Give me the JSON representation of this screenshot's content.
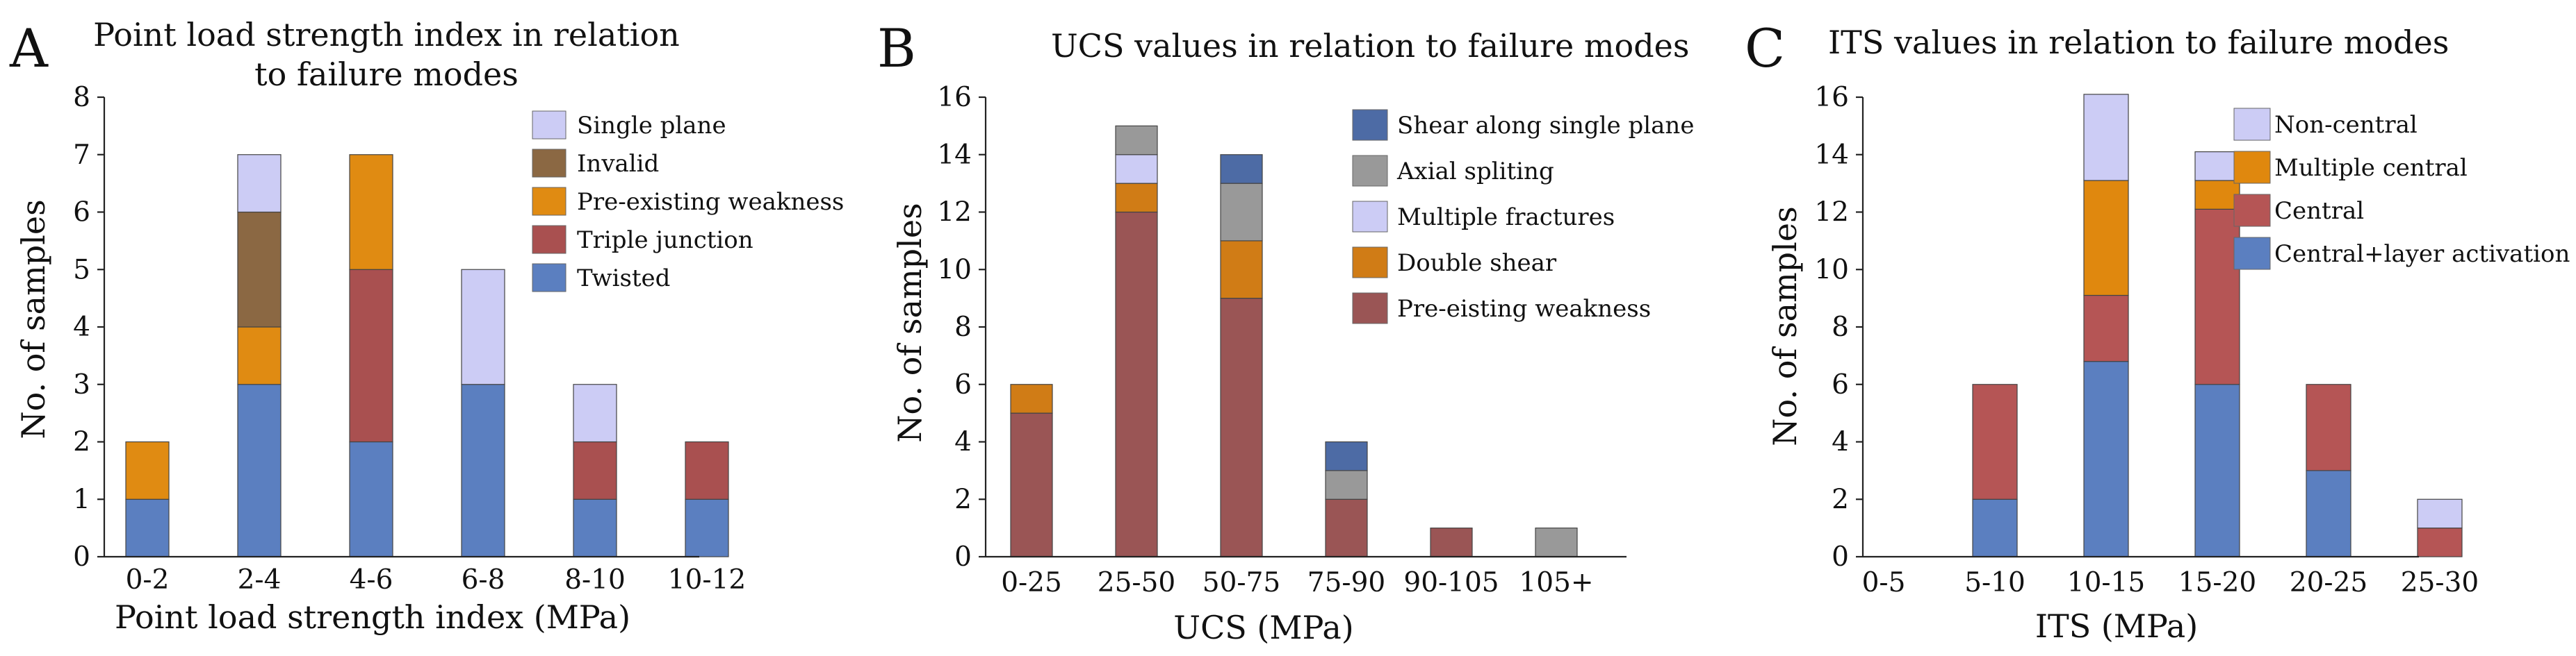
{
  "colors": {
    "single_plane": "#ccccf5",
    "invalid": "#8b6843",
    "pre_existing_weakness_a": "#e08b12",
    "triple_junction": "#a95050",
    "twisted": "#5b7fc0",
    "shear_single_plane": "#4d6ba5",
    "axial_splitting": "#999999",
    "multiple_fractures": "#ccccf5",
    "double_shear": "#d07c16",
    "pre_eisting_weakness": "#9a5555",
    "non_central": "#ccccf5",
    "multiple_central": "#e0880e",
    "central": "#b55555",
    "central_layer": "#5b7fc0"
  },
  "chart_data": [
    {
      "id": "A",
      "panel_letter": "A",
      "type": "bar",
      "stacked": true,
      "title_lines": [
        "Point load strength index in relation",
        "to failure modes"
      ],
      "xlabel": "Point load strength index (MPa)",
      "ylabel": "No. of samples",
      "ylim": [
        0,
        8
      ],
      "yticks": [
        0,
        1,
        2,
        3,
        4,
        5,
        6,
        7,
        8
      ],
      "grid": false,
      "legend_position": "top-right",
      "categories": [
        "0-2",
        "2-4",
        "4-6",
        "6-8",
        "8-10",
        "10-12"
      ],
      "series": [
        {
          "name": "Twisted",
          "color_key": "twisted",
          "values": [
            1,
            3,
            2,
            3,
            1,
            1
          ]
        },
        {
          "name": "Triple junction",
          "color_key": "triple_junction",
          "values": [
            0,
            0,
            3,
            0,
            1,
            1
          ]
        },
        {
          "name": "Pre-existing weakness",
          "color_key": "pre_existing_weakness_a",
          "values": [
            1,
            1,
            2,
            0,
            0,
            0
          ]
        },
        {
          "name": "Invalid",
          "color_key": "invalid",
          "values": [
            0,
            2,
            0,
            0,
            0,
            0
          ]
        },
        {
          "name": "Single plane",
          "color_key": "single_plane",
          "values": [
            0,
            1,
            0,
            2,
            1,
            0
          ]
        }
      ],
      "legend_order": [
        "Single plane",
        "Invalid",
        "Pre-existing weakness",
        "Triple junction",
        "Twisted"
      ]
    },
    {
      "id": "B",
      "panel_letter": "B",
      "type": "bar",
      "stacked": true,
      "title_lines": [
        "UCS values in relation to failure modes"
      ],
      "xlabel": "UCS (MPa)",
      "ylabel": "No. of samples",
      "ylim": [
        0,
        16
      ],
      "yticks": [
        0,
        2,
        4,
        6,
        8,
        10,
        12,
        14,
        16
      ],
      "grid": false,
      "legend_position": "top-right",
      "categories": [
        "0-25",
        "25-50",
        "50-75",
        "75-90",
        "90-105",
        "105+"
      ],
      "series": [
        {
          "name": "Pre-eisting weakness",
          "color_key": "pre_eisting_weakness",
          "values": [
            5,
            12,
            9,
            2,
            1,
            0
          ]
        },
        {
          "name": "Double shear",
          "color_key": "double_shear",
          "values": [
            1,
            1,
            2,
            0,
            0,
            0
          ]
        },
        {
          "name": "Multiple fractures",
          "color_key": "multiple_fractures",
          "values": [
            0,
            1,
            0,
            0,
            0,
            0
          ]
        },
        {
          "name": "Axial spliting",
          "color_key": "axial_splitting",
          "values": [
            0,
            1,
            2,
            1,
            0,
            1
          ]
        },
        {
          "name": "Shear along single plane",
          "color_key": "shear_single_plane",
          "values": [
            0,
            0,
            1,
            1,
            0,
            0
          ]
        }
      ],
      "legend_order": [
        "Shear along single plane",
        "Axial spliting",
        "Multiple fractures",
        "Double shear",
        "Pre-eisting weakness"
      ]
    },
    {
      "id": "C",
      "panel_letter": "C",
      "type": "bar",
      "stacked": true,
      "title_lines": [
        "ITS values in relation to failure modes"
      ],
      "xlabel": "ITS (MPa)",
      "ylabel": "No. of samples",
      "ylim": [
        0,
        16
      ],
      "yticks": [
        0,
        2,
        4,
        6,
        8,
        10,
        12,
        14,
        16
      ],
      "grid": false,
      "legend_position": "top-right",
      "categories": [
        "0-5",
        "5-10",
        "10-15",
        "15-20",
        "20-25",
        "25-30"
      ],
      "series": [
        {
          "name": "Central+layer activation",
          "color_key": "central_layer",
          "values": [
            0,
            2,
            6.8,
            6,
            3,
            0
          ]
        },
        {
          "name": "Central",
          "color_key": "central",
          "values": [
            0,
            4,
            2.3,
            6.1,
            3,
            1
          ]
        },
        {
          "name": "Multiple central",
          "color_key": "multiple_central",
          "values": [
            0,
            0,
            4,
            1,
            0,
            0
          ]
        },
        {
          "name": "Non-central",
          "color_key": "non_central",
          "values": [
            0,
            0,
            3,
            1,
            0,
            1
          ]
        }
      ],
      "legend_order": [
        "Non-central",
        "Multiple central",
        "Central",
        "Central+layer activation"
      ]
    }
  ]
}
